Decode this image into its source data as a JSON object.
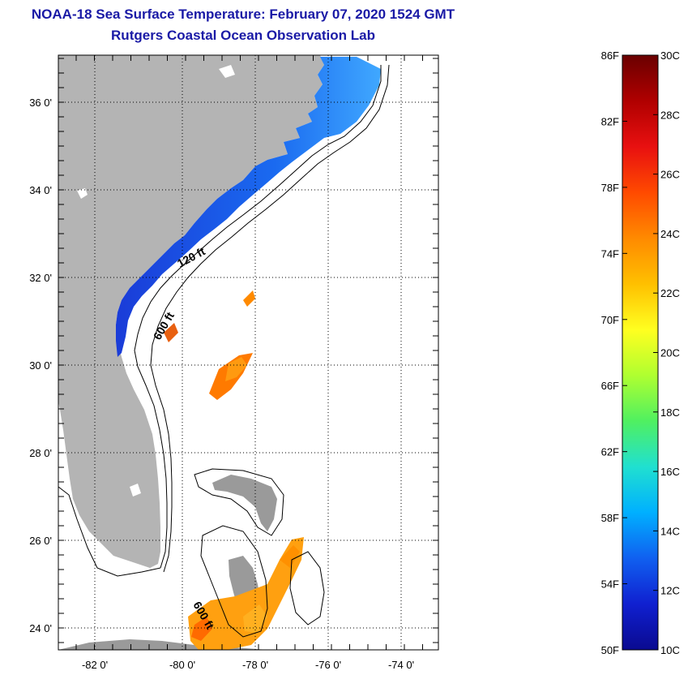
{
  "header": {
    "title": "NOAA-18 Sea Surface Temperature:  February 07, 2020 1524 GMT",
    "subtitle": "Rutgers Coastal Ocean Observation Lab"
  },
  "map": {
    "lat_labels": [
      "36 0'",
      "34 0'",
      "32 0'",
      "30 0'",
      "28 0'",
      "26 0'",
      "24 0'"
    ],
    "lon_labels": [
      "-82 0'",
      "-80 0'",
      "-78 0'",
      "-76 0'",
      "-74 0'"
    ],
    "contour_labels": [
      "120 ft",
      "600 ft",
      "600 ft"
    ],
    "land_color": "#b4b4b4",
    "cloud_color": "#ffffff"
  },
  "colorbar": {
    "fahrenheit_labels": [
      "86F",
      "82F",
      "78F",
      "74F",
      "70F",
      "66F",
      "62F",
      "58F",
      "54F",
      "50F"
    ],
    "celsius_labels": [
      "30C",
      "28C",
      "26C",
      "24C",
      "22C",
      "20C",
      "18C",
      "16C",
      "14C",
      "12C",
      "10C"
    ],
    "colors": [
      "#6a0000",
      "#b00000",
      "#e81010",
      "#ff4a00",
      "#ff8a00",
      "#ffc000",
      "#ffff20",
      "#b0ff30",
      "#50f060",
      "#20e0d0",
      "#00b0ff",
      "#1060f0",
      "#1020d0",
      "#0a0a90"
    ]
  }
}
